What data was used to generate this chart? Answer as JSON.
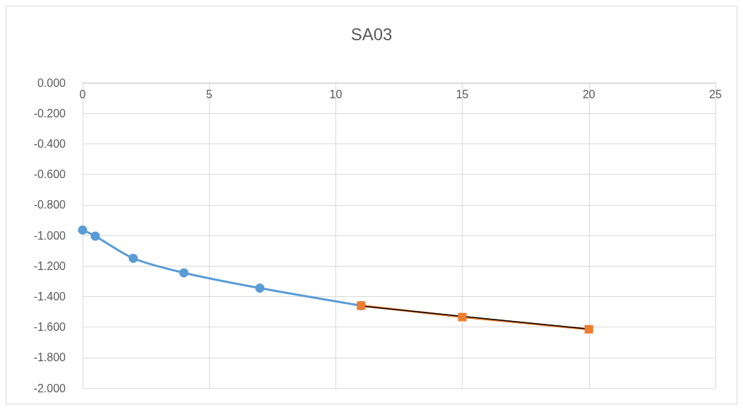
{
  "chart_data": {
    "type": "line",
    "title": "SA03",
    "grid": true,
    "xlim": [
      0,
      25
    ],
    "xticks": [
      0,
      5,
      10,
      15,
      20,
      25
    ],
    "ylim": [
      -2,
      0
    ],
    "yticks": [
      {
        "value": 0,
        "label": "0.000"
      },
      {
        "value": -0.2,
        "label": "-0.200"
      },
      {
        "value": -0.4,
        "label": "-0.400"
      },
      {
        "value": -0.6,
        "label": "-0.600"
      },
      {
        "value": -0.8,
        "label": "-0.800"
      },
      {
        "value": -1,
        "label": "-1.000"
      },
      {
        "value": -1.2,
        "label": "-1.200"
      },
      {
        "value": -1.4,
        "label": "-1.400"
      },
      {
        "value": -1.6,
        "label": "-1.600"
      },
      {
        "value": -1.8,
        "label": "-1.800"
      },
      {
        "value": -2,
        "label": "-2.000"
      }
    ],
    "series": [
      {
        "color": "#5b9bd5",
        "marker": "circle",
        "x": [
          0,
          0.5,
          2,
          4,
          7,
          11
        ],
        "values": [
          -0.965,
          -1.005,
          -1.15,
          -1.245,
          -1.345,
          -1.46
        ]
      },
      {
        "color": "#ed7d31",
        "marker": "square",
        "x": [
          11,
          15,
          20
        ],
        "values": [
          -1.46,
          -1.535,
          -1.615
        ]
      },
      {
        "color": "#000000",
        "marker": "none",
        "x": [
          11,
          20
        ],
        "values": [
          -1.463,
          -1.613
        ]
      }
    ]
  }
}
